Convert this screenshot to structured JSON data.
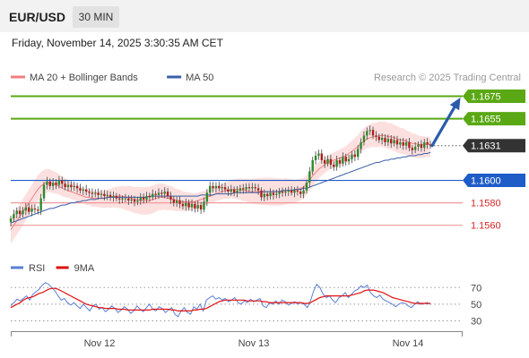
{
  "header": {
    "pair": "EUR/USD",
    "timeframe": "30 MIN",
    "datetime": "Friday, November 14, 2025 3:30:35 AM CET"
  },
  "chart_data": [
    {
      "type": "line",
      "subtype": "candlestick",
      "legend": [
        {
          "name": "MA 20 + Bollinger Bands",
          "color": "#f08080"
        },
        {
          "name": "MA 50",
          "color": "#3a5fa8"
        }
      ],
      "credit": "Research © 2025 Trading Central",
      "ylim": [
        1.1547,
        1.1685
      ],
      "x_ticks": [
        "Nov 12",
        "Nov 13",
        "Nov 14"
      ],
      "levels": [
        {
          "value": 1.1675,
          "label": "1.1675",
          "kind": "resistance",
          "color": "#5aa814"
        },
        {
          "value": 1.1655,
          "label": "1.1655",
          "kind": "resistance",
          "color": "#5aa814"
        },
        {
          "value": 1.1631,
          "label": "1.1631",
          "kind": "last-price",
          "color": "#333333"
        },
        {
          "value": 1.16,
          "label": "1.1600",
          "kind": "pivot",
          "color": "#1e5cc8"
        },
        {
          "value": 1.158,
          "label": "1.1580",
          "kind": "support",
          "color": "#d62728"
        },
        {
          "value": 1.156,
          "label": "1.1560",
          "kind": "support",
          "color": "#d62728"
        }
      ],
      "arrow": {
        "from": 1.1631,
        "to": 1.1675,
        "color": "#2a5caa"
      },
      "close": [
        1.1566,
        1.157,
        1.1573,
        1.157,
        1.1573,
        1.1576,
        1.1572,
        1.1575,
        1.1574,
        1.1573,
        1.1584,
        1.1596,
        1.1599,
        1.1595,
        1.1598,
        1.1596,
        1.16,
        1.1597,
        1.1594,
        1.1596,
        1.1594,
        1.1595,
        1.1593,
        1.1591,
        1.1592,
        1.159,
        1.1589,
        1.1588,
        1.1589,
        1.1587,
        1.1588,
        1.1586,
        1.1587,
        1.1585,
        1.1586,
        1.1584,
        1.1583,
        1.1584,
        1.1584,
        1.1582,
        1.1583,
        1.1581,
        1.1582,
        1.1585,
        1.1583,
        1.1586,
        1.1585,
        1.1588,
        1.1587,
        1.1589,
        1.1588,
        1.159,
        1.1586,
        1.1583,
        1.158,
        1.1582,
        1.1579,
        1.1577,
        1.158,
        1.1576,
        1.1579,
        1.1575,
        1.1578,
        1.1574,
        1.1581,
        1.1589,
        1.1595,
        1.1593,
        1.1595,
        1.1593,
        1.1594,
        1.1592,
        1.159,
        1.1592,
        1.1589,
        1.1591,
        1.1593,
        1.1592,
        1.1594,
        1.1593,
        1.1594,
        1.1593,
        1.1591,
        1.1585,
        1.1588,
        1.1586,
        1.1589,
        1.1587,
        1.1588,
        1.159,
        1.1589,
        1.159,
        1.1591,
        1.1589,
        1.1591,
        1.159,
        1.1588,
        1.1591,
        1.1598,
        1.1608,
        1.1618,
        1.1622,
        1.1624,
        1.1618,
        1.1615,
        1.1619,
        1.1614,
        1.1612,
        1.1618,
        1.1615,
        1.1621,
        1.1617,
        1.1619,
        1.1623,
        1.1621,
        1.1628,
        1.1634,
        1.164,
        1.1644,
        1.1645,
        1.164,
        1.1639,
        1.1636,
        1.1638,
        1.1634,
        1.1637,
        1.1633,
        1.1636,
        1.1632,
        1.1634,
        1.1631,
        1.1634,
        1.1629,
        1.1627,
        1.163,
        1.1632,
        1.1629,
        1.1634,
        1.1632,
        1.1631
      ],
      "ma20": [
        1.1556,
        1.156,
        1.1564,
        1.1568,
        1.1572,
        1.1576,
        1.158,
        1.1584,
        1.1588,
        1.1592,
        1.1595,
        1.1597,
        1.1598,
        1.1598,
        1.1597,
        1.1596,
        1.1595,
        1.1593,
        1.1592,
        1.1591,
        1.159,
        1.1589,
        1.1588,
        1.1587,
        1.1586,
        1.1585,
        1.1585,
        1.1584,
        1.1584,
        1.1584,
        1.1584,
        1.1584,
        1.1585,
        1.1585,
        1.1586,
        1.1586,
        1.1586,
        1.1586,
        1.1585,
        1.1585,
        1.1584,
        1.1583,
        1.1583,
        1.1582,
        1.1582,
        1.1582,
        1.1582,
        1.1583,
        1.1584,
        1.1585,
        1.1585,
        1.1585,
        1.1584,
        1.1584,
        1.1583,
        1.1582,
        1.1582,
        1.1581,
        1.1581,
        1.1581,
        1.1581,
        1.1581,
        1.1582,
        1.1583,
        1.1584,
        1.1585,
        1.1586,
        1.1587,
        1.1588,
        1.1589,
        1.159,
        1.1591,
        1.1591,
        1.1592,
        1.1592,
        1.1592,
        1.1592,
        1.1591,
        1.1591,
        1.159,
        1.159,
        1.159,
        1.159,
        1.159,
        1.159,
        1.159,
        1.159,
        1.159,
        1.159,
        1.159,
        1.159,
        1.1591,
        1.1591,
        1.1591,
        1.1591,
        1.1592,
        1.1593,
        1.1594,
        1.1597,
        1.16,
        1.1604,
        1.1607,
        1.161,
        1.1612,
        1.1614,
        1.1616,
        1.1617,
        1.1618,
        1.1619,
        1.162,
        1.1621,
        1.1622,
        1.1624,
        1.1626,
        1.1628,
        1.163,
        1.1633,
        1.1635,
        1.1637,
        1.1638,
        1.1639,
        1.1639,
        1.164,
        1.164,
        1.164,
        1.1639,
        1.1639,
        1.1638,
        1.1637,
        1.1636,
        1.1636,
        1.1635,
        1.1634,
        1.1633,
        1.1633,
        1.1632,
        1.1632,
        1.1632,
        1.1632,
        1.1632
      ],
      "ma50": [
        1.1562,
        1.1563,
        1.1564,
        1.1565,
        1.1566,
        1.1567,
        1.1568,
        1.1569,
        1.157,
        1.1571,
        1.1572,
        1.1573,
        1.1574,
        1.1575,
        1.1575,
        1.1576,
        1.1577,
        1.1578,
        1.1578,
        1.1579,
        1.158,
        1.158,
        1.1581,
        1.1581,
        1.1582,
        1.1582,
        1.1583,
        1.1583,
        1.1583,
        1.1584,
        1.1584,
        1.1584,
        1.1585,
        1.1585,
        1.1585,
        1.1585,
        1.1585,
        1.1585,
        1.1585,
        1.1585,
        1.1585,
        1.1585,
        1.1585,
        1.1585,
        1.1585,
        1.1585,
        1.1586,
        1.1586,
        1.1586,
        1.1586,
        1.1586,
        1.1586,
        1.1586,
        1.1586,
        1.1586,
        1.1586,
        1.1586,
        1.1586,
        1.1586,
        1.1586,
        1.1586,
        1.1586,
        1.1586,
        1.1587,
        1.1587,
        1.1587,
        1.1587,
        1.1587,
        1.1588,
        1.1588,
        1.1588,
        1.1588,
        1.1588,
        1.1588,
        1.1589,
        1.1589,
        1.1589,
        1.1589,
        1.1589,
        1.1589,
        1.1589,
        1.1589,
        1.1589,
        1.159,
        1.159,
        1.159,
        1.159,
        1.159,
        1.159,
        1.159,
        1.1591,
        1.1591,
        1.1591,
        1.1591,
        1.1592,
        1.1592,
        1.1592,
        1.1593,
        1.1593,
        1.1594,
        1.1595,
        1.1596,
        1.1597,
        1.1598,
        1.1599,
        1.16,
        1.1601,
        1.1602,
        1.1603,
        1.1604,
        1.1605,
        1.1606,
        1.1607,
        1.1608,
        1.1609,
        1.161,
        1.1611,
        1.1612,
        1.1613,
        1.1614,
        1.1615,
        1.1616,
        1.1616,
        1.1617,
        1.1618,
        1.1618,
        1.1619,
        1.1619,
        1.162,
        1.162,
        1.1621,
        1.1621,
        1.1622,
        1.1622,
        1.1622,
        1.1623,
        1.1623,
        1.1624,
        1.1624,
        1.1625
      ]
    },
    {
      "type": "line",
      "legend": [
        {
          "name": "RSI",
          "color": "#5b7fd6"
        },
        {
          "name": "9MA",
          "color": "#e01010"
        }
      ],
      "ylim": [
        22,
        80
      ],
      "y_ticks": [
        "70",
        "50",
        "30"
      ],
      "rsi": [
        48,
        52,
        56,
        54,
        57,
        60,
        55,
        62,
        65,
        68,
        73,
        76,
        74,
        70,
        66,
        60,
        55,
        57,
        52,
        49,
        52,
        48,
        45,
        50,
        46,
        42,
        48,
        50,
        44,
        46,
        41,
        44,
        48,
        45,
        40,
        43,
        47,
        44,
        39,
        42,
        48,
        44,
        41,
        46,
        50,
        44,
        42,
        47,
        45,
        40,
        43,
        46,
        38,
        35,
        42,
        46,
        40,
        38,
        47,
        44,
        50,
        42,
        55,
        58,
        60,
        56,
        58,
        55,
        57,
        53,
        55,
        58,
        52,
        50,
        54,
        52,
        56,
        53,
        55,
        57,
        48,
        46,
        52,
        50,
        54,
        50,
        55,
        53,
        49,
        51,
        53,
        50,
        52,
        50,
        46,
        54,
        66,
        74,
        70,
        62,
        58,
        60,
        55,
        52,
        58,
        60,
        64,
        58,
        62,
        66,
        68,
        72,
        70,
        73,
        64,
        60,
        58,
        61,
        56,
        54,
        52,
        50,
        47,
        50,
        52,
        51,
        48,
        46,
        50,
        53,
        50,
        51,
        52,
        50
      ],
      "ma9": [
        46,
        48,
        50,
        52,
        55,
        57,
        58,
        59,
        61,
        63,
        64,
        66,
        68,
        69,
        69,
        68,
        66,
        64,
        62,
        60,
        58,
        56,
        54,
        52,
        50,
        49,
        48,
        47,
        46,
        46,
        45,
        45,
        45,
        45,
        44,
        44,
        44,
        43,
        43,
        43,
        43,
        43,
        43,
        43,
        43,
        44,
        44,
        44,
        44,
        44,
        44,
        43,
        43,
        42,
        42,
        42,
        42,
        42,
        43,
        43,
        44,
        44,
        45,
        47,
        49,
        51,
        53,
        54,
        55,
        55,
        55,
        55,
        55,
        55,
        55,
        54,
        54,
        54,
        54,
        54,
        53,
        53,
        52,
        52,
        52,
        52,
        52,
        52,
        52,
        52,
        52,
        52,
        52,
        51,
        51,
        52,
        54,
        56,
        58,
        59,
        60,
        60,
        60,
        60,
        60,
        60,
        60,
        60,
        61,
        62,
        63,
        64,
        66,
        67,
        67,
        67,
        66,
        65,
        64,
        62,
        60,
        58,
        57,
        56,
        55,
        54,
        53,
        52,
        51,
        51,
        51,
        51,
        51,
        51
      ]
    }
  ]
}
